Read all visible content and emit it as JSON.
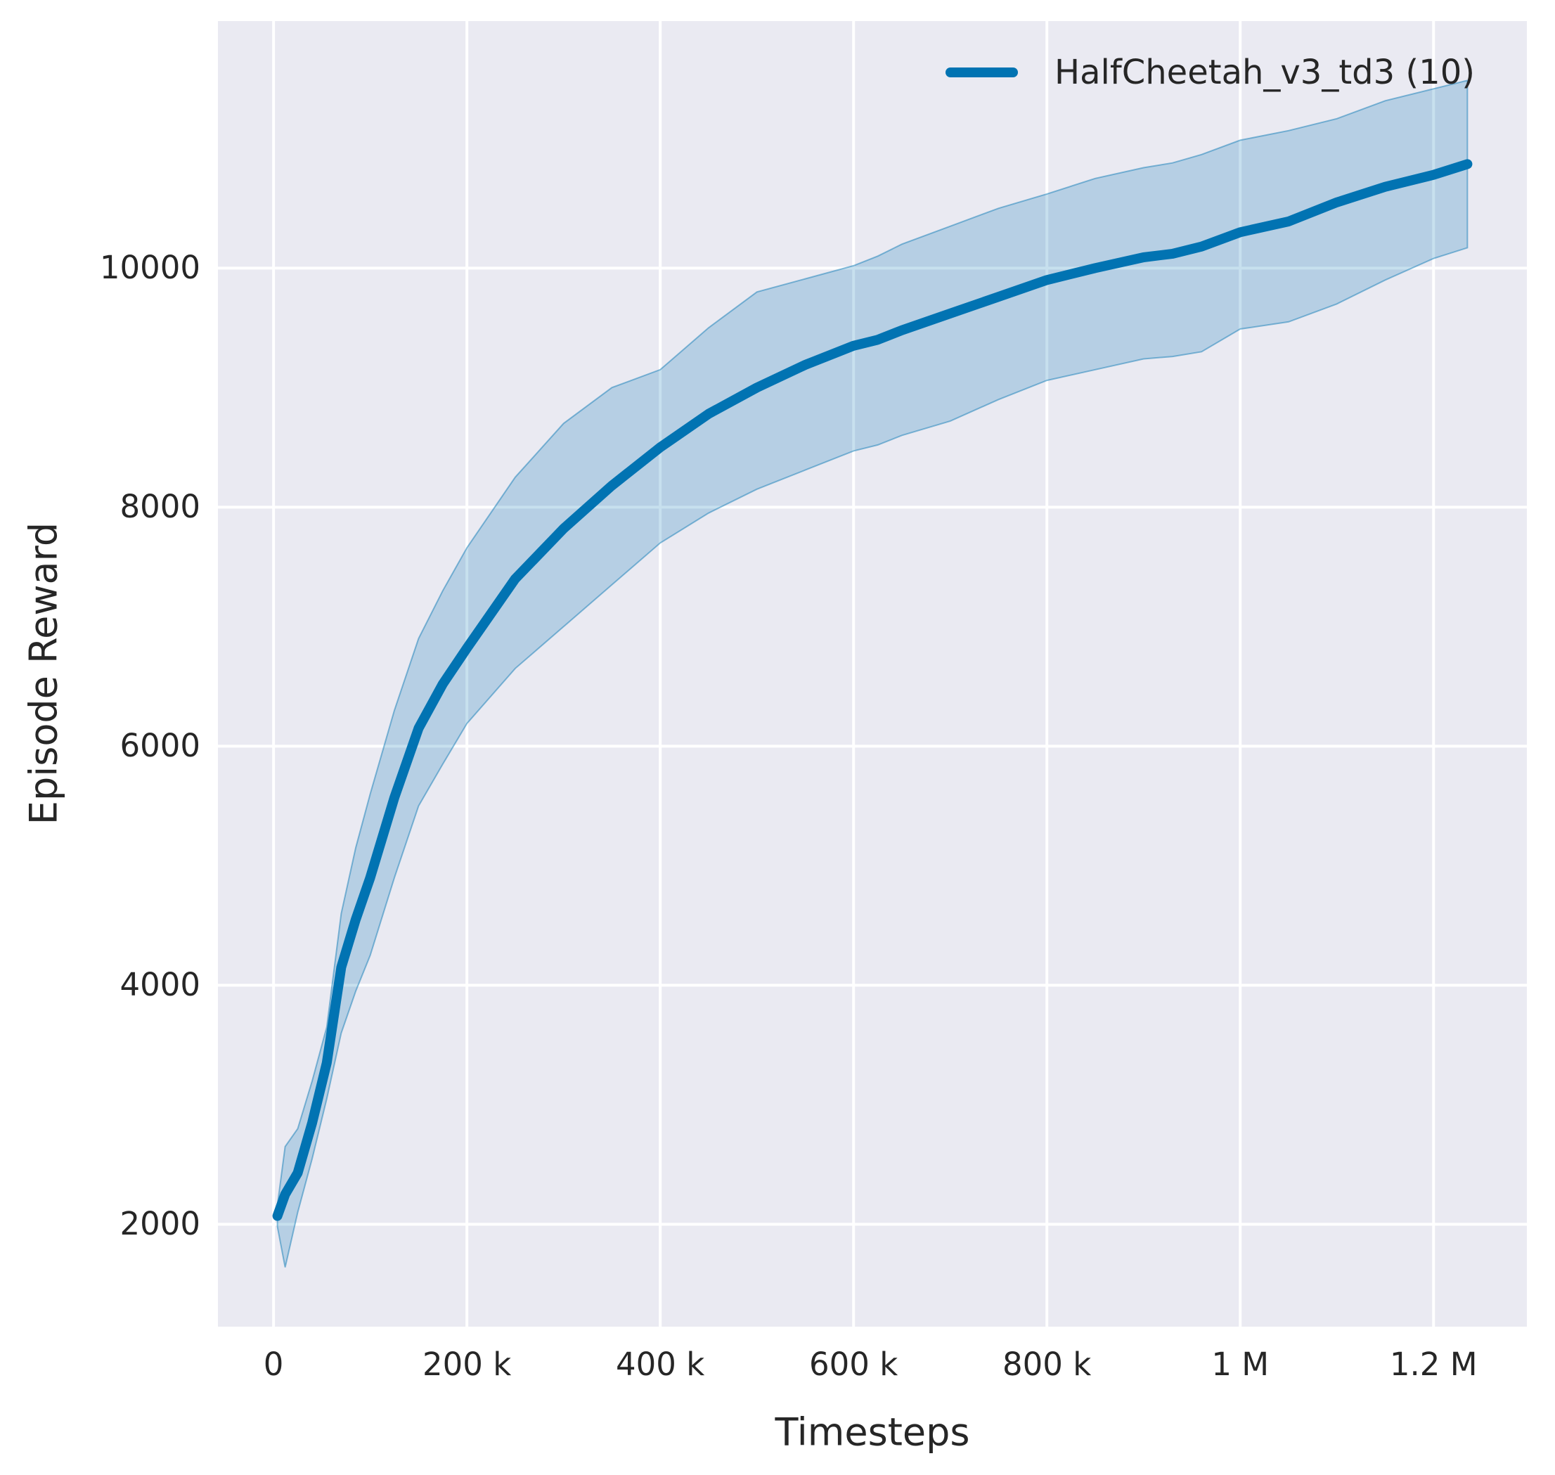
{
  "axes": {
    "xlabel": "Timesteps",
    "ylabel": "Episode Reward"
  },
  "legend": {
    "label": "HalfCheetah_v3_td3 (10)"
  },
  "colors": {
    "line": "#0173b2",
    "band_fill": "#0173b2",
    "plot_background": "#eaeaf2",
    "grid": "#ffffff",
    "text": "#262626",
    "figure_background": "#ffffff"
  },
  "chart_data": {
    "type": "line",
    "title": "",
    "xlabel": "Timesteps",
    "ylabel": "Episode Reward",
    "grid": true,
    "legend_position": "upper right",
    "x_ticks": [
      {
        "value": 0,
        "label": "0"
      },
      {
        "value": 200000,
        "label": "200 k"
      },
      {
        "value": 400000,
        "label": "400 k"
      },
      {
        "value": 600000,
        "label": "600 k"
      },
      {
        "value": 800000,
        "label": "800 k"
      },
      {
        "value": 1000000,
        "label": "1 M"
      },
      {
        "value": 1200000,
        "label": "1.2 M"
      }
    ],
    "y_ticks": [
      {
        "value": 2000,
        "label": "2000"
      },
      {
        "value": 4000,
        "label": "4000"
      },
      {
        "value": 6000,
        "label": "6000"
      },
      {
        "value": 8000,
        "label": "8000"
      },
      {
        "value": 10000,
        "label": "10000"
      }
    ],
    "margin_fraction": 0.05,
    "series": [
      {
        "name": "HalfCheetah_v3_td3 (10)",
        "color": "#0173b2",
        "band_alpha": 0.22,
        "x": [
          4000,
          12000,
          25000,
          40000,
          55000,
          70000,
          85000,
          100000,
          125000,
          150000,
          175000,
          200000,
          250000,
          300000,
          350000,
          400000,
          450000,
          500000,
          550000,
          600000,
          625000,
          650000,
          700000,
          750000,
          800000,
          850000,
          900000,
          930000,
          960000,
          1000000,
          1050000,
          1100000,
          1150000,
          1200000,
          1235000
        ],
        "mean": [
          2070,
          2250,
          2430,
          2850,
          3350,
          4150,
          4550,
          4900,
          5570,
          6150,
          6520,
          6820,
          7400,
          7820,
          8180,
          8500,
          8780,
          9000,
          9190,
          9350,
          9400,
          9480,
          9620,
          9760,
          9900,
          10000,
          10090,
          10120,
          10180,
          10300,
          10390,
          10550,
          10680,
          10780,
          10870
        ],
        "lo": [
          1980,
          1640,
          2100,
          2550,
          3050,
          3600,
          3950,
          4250,
          4900,
          5500,
          5850,
          6190,
          6650,
          7000,
          7350,
          7700,
          7950,
          8150,
          8310,
          8470,
          8520,
          8600,
          8720,
          8900,
          9060,
          9150,
          9240,
          9260,
          9300,
          9490,
          9550,
          9700,
          9900,
          10080,
          10170
        ],
        "hi": [
          2160,
          2650,
          2800,
          3200,
          3650,
          4600,
          5150,
          5600,
          6300,
          6900,
          7300,
          7660,
          8250,
          8700,
          9000,
          9150,
          9500,
          9800,
          9910,
          10020,
          10100,
          10200,
          10350,
          10500,
          10620,
          10750,
          10840,
          10880,
          10950,
          11070,
          11150,
          11250,
          11400,
          11500,
          11570
        ]
      }
    ]
  }
}
